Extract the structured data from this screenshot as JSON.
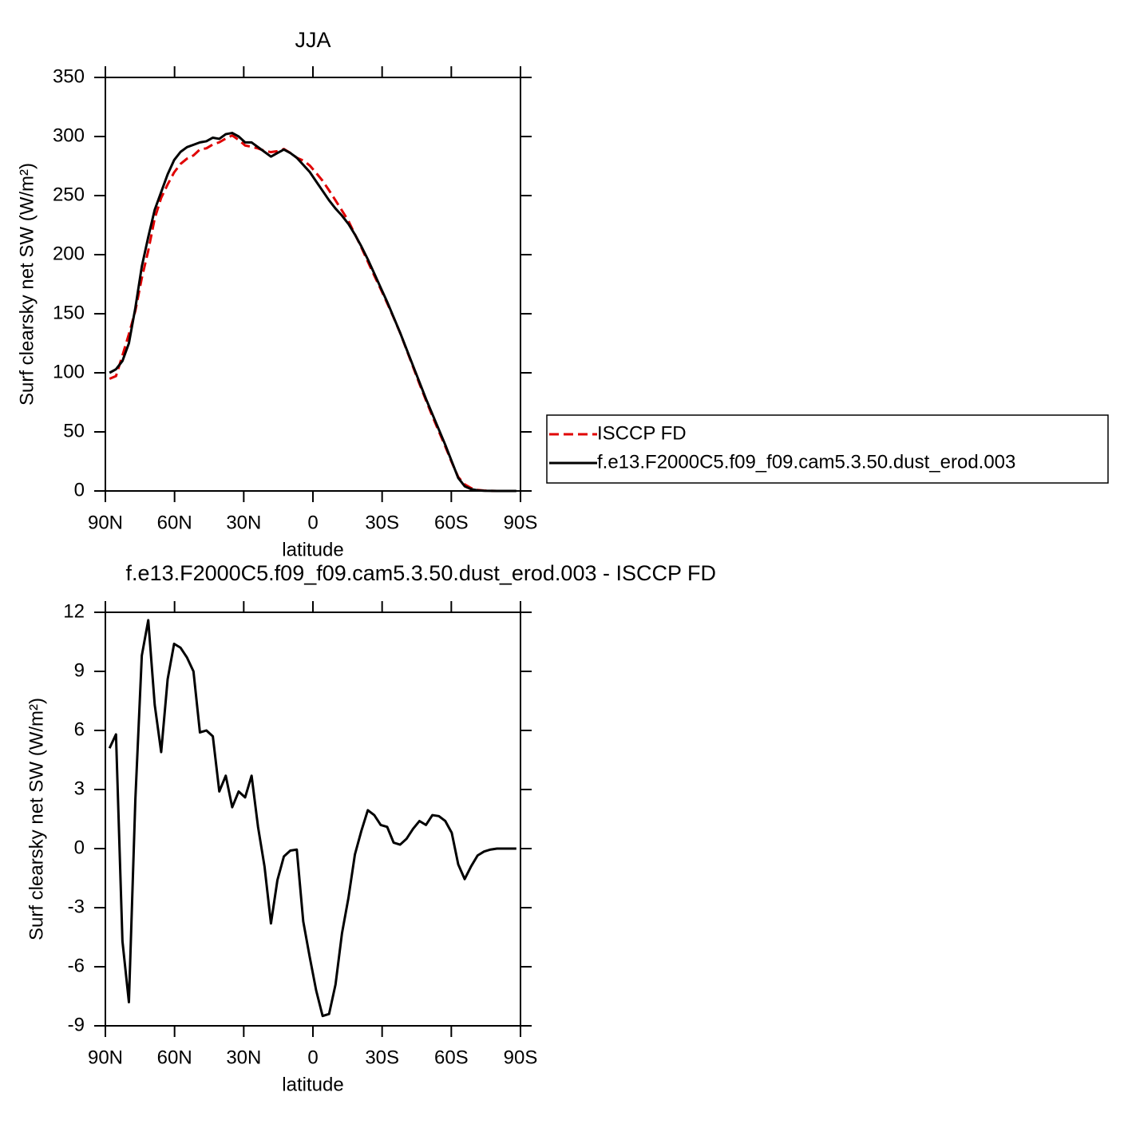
{
  "chart_data": [
    {
      "type": "line",
      "title": "JJA",
      "xlabel": "latitude",
      "ylabel": "Surf clearsky net SW (W/m²)",
      "x": [
        88.2,
        85.4,
        82.6,
        79.8,
        77.0,
        74.2,
        71.4,
        68.6,
        65.8,
        63.0,
        60.2,
        57.4,
        54.6,
        51.8,
        49.0,
        46.2,
        43.4,
        40.6,
        37.8,
        35.0,
        32.2,
        29.4,
        26.6,
        23.8,
        21.0,
        18.2,
        15.4,
        12.6,
        9.8,
        7.0,
        4.2,
        1.4,
        -1.4,
        -4.2,
        -7.0,
        -9.8,
        -12.6,
        -15.4,
        -18.2,
        -21.0,
        -23.8,
        -26.6,
        -29.4,
        -32.2,
        -35.0,
        -37.8,
        -40.6,
        -43.4,
        -46.2,
        -49.0,
        -51.8,
        -54.6,
        -57.4,
        -60.2,
        -63.0,
        -65.8,
        -68.6,
        -71.4,
        -74.2,
        -77.0,
        -79.8,
        -82.6,
        -85.4,
        -88.2
      ],
      "series": [
        {
          "name": "ISCCP FD",
          "color": "#e00000",
          "linestyle": "dashed",
          "values": [
            94.9,
            97.2,
            114.7,
            132.8,
            152.5,
            180.2,
            203.4,
            230.7,
            248.1,
            259.4,
            269.6,
            276.8,
            281.3,
            284.0,
            289.1,
            290.0,
            293.3,
            295.1,
            298.3,
            300.9,
            297.1,
            292.4,
            291.3,
            289.9,
            287.9,
            286.8,
            287.6,
            289.4,
            286.1,
            282.05,
            279.7,
            275.5,
            269.2,
            262.5,
            254.4,
            245.9,
            237.3,
            228.5,
            217.3,
            206.1,
            194.05,
            182.3,
            170.8,
            158.9,
            146.7,
            133.8,
            119.5,
            105.0,
            90.6,
            76.8,
            63.3,
            50.35,
            37.6,
            24.2,
            11.8,
            5.55,
            2.4,
            0.85,
            0.35,
            0.1,
            0,
            0,
            0,
            0
          ]
        },
        {
          "name": "f.e13.F2000C5.f09_f09.cam5.3.50.dust_erod.003",
          "color": "#000000",
          "linestyle": "solid",
          "values": [
            100,
            103,
            110,
            125,
            155,
            190,
            215,
            238,
            253,
            268,
            280,
            287,
            291,
            293,
            295,
            296,
            299,
            298,
            302,
            303,
            300,
            295,
            295,
            291,
            287,
            283,
            286,
            289,
            286,
            282,
            276,
            270,
            262,
            254,
            246,
            239,
            233,
            226,
            217,
            207,
            196,
            184,
            172,
            160,
            147,
            134,
            120,
            106,
            92,
            78,
            65,
            52,
            39,
            25,
            11,
            4,
            1.5,
            0.5,
            0.2,
            0.05,
            0,
            0,
            0,
            0
          ]
        }
      ],
      "xlim": [
        90,
        -90
      ],
      "ylim": [
        0,
        350
      ],
      "xticks": [
        {
          "value": 90,
          "label": "90N"
        },
        {
          "value": 60,
          "label": "60N"
        },
        {
          "value": 30,
          "label": "30N"
        },
        0,
        {
          "value": -30,
          "label": "30S"
        },
        {
          "value": -60,
          "label": "60S"
        },
        {
          "value": -90,
          "label": "90S"
        }
      ],
      "yticks": [
        0,
        50,
        100,
        150,
        200,
        250,
        300,
        350
      ],
      "legend": "right"
    },
    {
      "type": "line",
      "title": "f.e13.F2000C5.f09_f09.cam5.3.50.dust_erod.003 - ISCCP FD",
      "xlabel": "latitude",
      "ylabel": "Surf clearsky net SW (W/m²)",
      "x": [
        88.2,
        85.4,
        82.6,
        79.8,
        77.0,
        74.2,
        71.4,
        68.6,
        65.8,
        63.0,
        60.2,
        57.4,
        54.6,
        51.8,
        49.0,
        46.2,
        43.4,
        40.6,
        37.8,
        35.0,
        32.2,
        29.4,
        26.6,
        23.8,
        21.0,
        18.2,
        15.4,
        12.6,
        9.8,
        7.0,
        4.2,
        1.4,
        -1.4,
        -4.2,
        -7.0,
        -9.8,
        -12.6,
        -15.4,
        -18.2,
        -21.0,
        -23.8,
        -26.6,
        -29.4,
        -32.2,
        -35.0,
        -37.8,
        -40.6,
        -43.4,
        -46.2,
        -49.0,
        -51.8,
        -54.6,
        -57.4,
        -60.2,
        -63.0,
        -65.8,
        -68.6,
        -71.4,
        -74.2,
        -77.0,
        -79.8,
        -82.6,
        -85.4,
        -88.2
      ],
      "series": [
        {
          "color": "#000000",
          "linestyle": "solid",
          "values": [
            5.1,
            5.8,
            -4.7,
            -7.8,
            2.5,
            9.8,
            11.6,
            7.3,
            4.9,
            8.6,
            10.4,
            10.2,
            9.7,
            9.0,
            5.9,
            6.0,
            5.7,
            2.9,
            3.7,
            2.1,
            2.9,
            2.6,
            3.7,
            1.1,
            -0.9,
            -3.8,
            -1.6,
            -0.4,
            -0.1,
            -0.05,
            -3.7,
            -5.5,
            -7.2,
            -8.5,
            -8.4,
            -6.9,
            -4.3,
            -2.5,
            -0.3,
            0.9,
            1.95,
            1.7,
            1.2,
            1.1,
            0.3,
            0.2,
            0.5,
            1.0,
            1.4,
            1.2,
            1.7,
            1.65,
            1.4,
            0.8,
            -0.8,
            -1.55,
            -0.9,
            -0.35,
            -0.15,
            -0.05,
            0,
            0,
            0,
            0
          ]
        }
      ],
      "xlim": [
        90,
        -90
      ],
      "ylim": [
        -9,
        12
      ],
      "xticks": [
        {
          "value": 90,
          "label": "90N"
        },
        {
          "value": 60,
          "label": "60N"
        },
        {
          "value": 30,
          "label": "30N"
        },
        0,
        {
          "value": -30,
          "label": "30S"
        },
        {
          "value": -60,
          "label": "60S"
        },
        {
          "value": -90,
          "label": "90S"
        }
      ],
      "yticks": [
        -9,
        -6,
        -3,
        0,
        3,
        6,
        9,
        12
      ]
    }
  ]
}
